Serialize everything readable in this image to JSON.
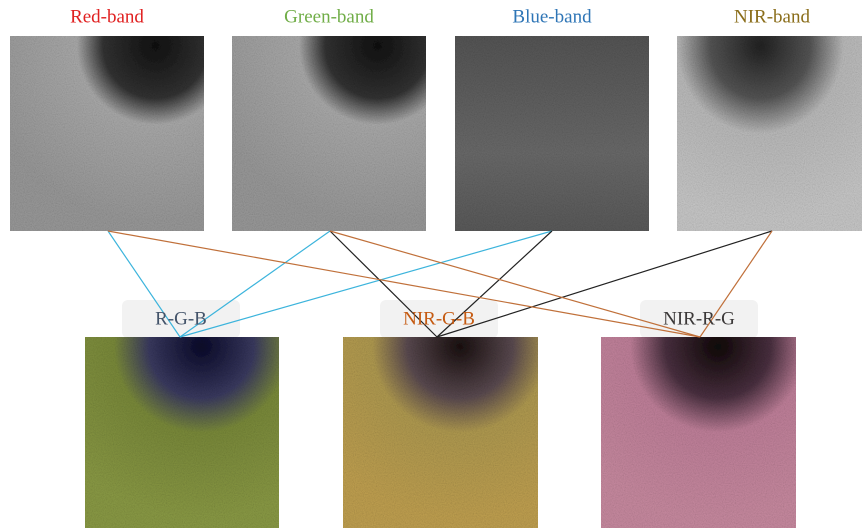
{
  "bands": [
    {
      "label": "Red-band"
    },
    {
      "label": "Green-band"
    },
    {
      "label": "Blue-band"
    },
    {
      "label": "NIR-band"
    }
  ],
  "composites": [
    {
      "label": "R-G-B"
    },
    {
      "label": "NIR-G-B"
    },
    {
      "label": "NIR-R-G"
    }
  ]
}
